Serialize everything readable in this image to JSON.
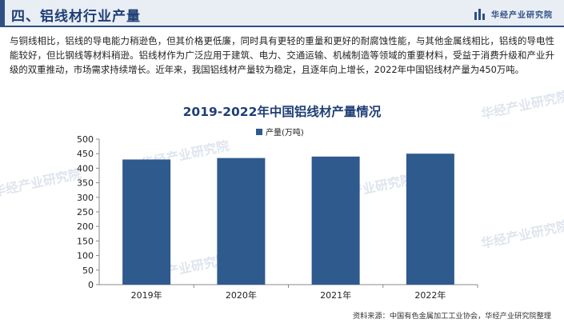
{
  "header": {
    "title": "四、铝线材行业产量",
    "brand": "华经产业研究院"
  },
  "paragraph": "与铜线相比，铝线的导电能力稍逊色，但其价格更低廉，同时具有更轻的重量和更好的耐腐蚀性能，与其他金属线相比，铝线的导电性能较好，但比钢线等材料稍逊。铝线材作为广泛应用于建筑、电力、交通运输、机械制造等领域的重要材料，受益于消费升级和产业升级的双重推动，市场需求持续增长。近年来，我国铝线材产量较为稳定，且逐年向上增长，2022年中国铝线材产量为450万吨。",
  "source": "资料来源：中国有色金属加工工业协会，华经产业研究院整理",
  "colors": {
    "bar": "#2e5a8e",
    "accent": "#1f3f74"
  },
  "chart_data": {
    "type": "bar",
    "title": "2019-2022年中国铝线材产量情况",
    "categories": [
      "2019年",
      "2020年",
      "2021年",
      "2022年"
    ],
    "series": [
      {
        "name": "产量(万吨)",
        "values": [
          430,
          435,
          440,
          450
        ]
      }
    ],
    "yticks": [
      "0",
      "50",
      "100",
      "150",
      "200",
      "250",
      "300",
      "350",
      "400",
      "450",
      "500"
    ],
    "ylim": [
      0,
      500
    ],
    "legend": "top-center",
    "grid": false
  }
}
